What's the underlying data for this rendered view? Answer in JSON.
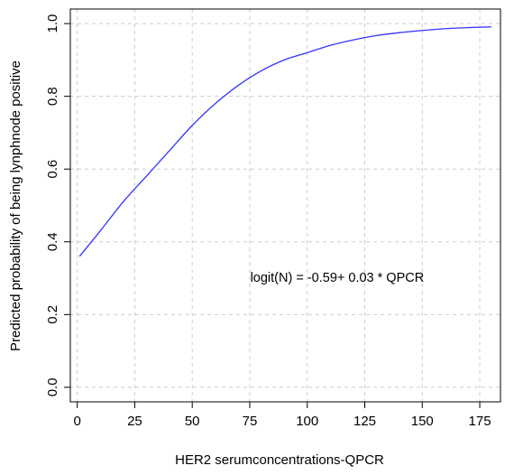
{
  "chart_data": {
    "type": "line",
    "title": "",
    "xlabel": "HER2 serumconcentrations-QPCR",
    "ylabel": "Predicted probability of being lynphnode positive",
    "xlim": [
      -3,
      184
    ],
    "ylim": [
      -0.04,
      1.04
    ],
    "x_ticks": [
      0,
      25,
      50,
      75,
      100,
      125,
      150,
      175
    ],
    "y_ticks": [
      0.0,
      0.2,
      0.4,
      0.6,
      0.8,
      1.0
    ],
    "x_tick_labels": [
      "0",
      "25",
      "50",
      "75",
      "100",
      "125",
      "150",
      "175"
    ],
    "y_tick_labels": [
      "0.0",
      "0.2",
      "0.4",
      "0.6",
      "0.8",
      "1.0"
    ],
    "grid": true,
    "series": [
      {
        "color": "#3333ff",
        "x": [
          1,
          10,
          20,
          30,
          40,
          50,
          60,
          70,
          80,
          90,
          100,
          110,
          120,
          130,
          140,
          150,
          160,
          170,
          180
        ],
        "y": [
          0.36,
          0.43,
          0.51,
          0.58,
          0.65,
          0.72,
          0.78,
          0.83,
          0.87,
          0.9,
          0.92,
          0.94,
          0.955,
          0.967,
          0.975,
          0.981,
          0.986,
          0.989,
          0.991
        ]
      }
    ],
    "annotation": {
      "text": "logit(N) = -0.59+ 0.03 * QPCR",
      "x": 113,
      "y": 0.29
    }
  }
}
